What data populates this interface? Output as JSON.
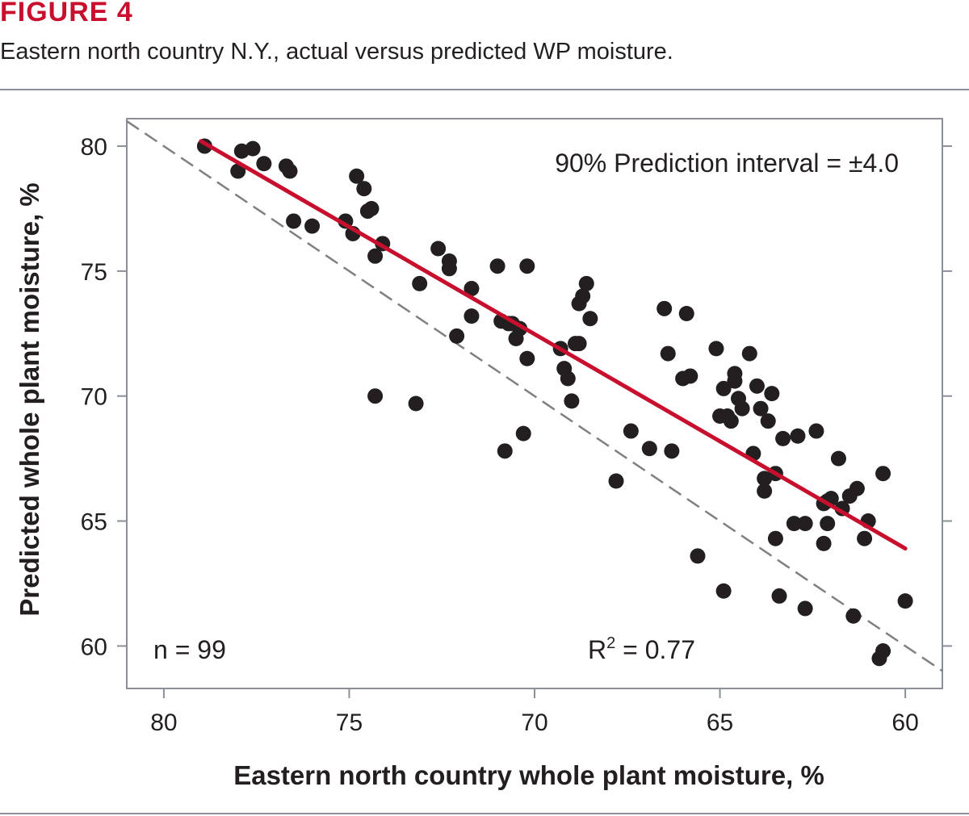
{
  "header": {
    "figure_label": "FIGURE 4",
    "caption": "Eastern north country N.Y., actual versus predicted WP moisture."
  },
  "colors": {
    "accent": "#c8102e",
    "points": "#231f20",
    "reference_line": "#808080",
    "frame": "#8a8f98"
  },
  "chart_data": {
    "type": "scatter",
    "xlabel": "Eastern north country whole plant moisture, %",
    "ylabel": "Predicted whole plant moisture, %",
    "xlim": [
      81,
      59
    ],
    "ylim": [
      58.3,
      81.1
    ],
    "x_reversed": true,
    "x_ticks": [
      80,
      75,
      70,
      65,
      60
    ],
    "y_ticks": [
      80,
      75,
      70,
      65,
      60
    ],
    "annotations": {
      "interval": "90% Prediction interval = ±4.0",
      "n": "n = 99",
      "r2_base": "R",
      "r2_sup": "2",
      "r2_rest": " = 0.77"
    },
    "regression_line": {
      "x": [
        79,
        60
      ],
      "y": [
        80.2,
        63.9
      ]
    },
    "reference_line": {
      "x": [
        81,
        59
      ],
      "y": [
        81,
        59
      ]
    },
    "points": [
      [
        78.9,
        80.0
      ],
      [
        78.0,
        79.0
      ],
      [
        77.9,
        79.8
      ],
      [
        77.6,
        79.9
      ],
      [
        77.3,
        79.3
      ],
      [
        76.7,
        79.2
      ],
      [
        76.6,
        79.0
      ],
      [
        76.5,
        77.0
      ],
      [
        76.0,
        76.8
      ],
      [
        75.1,
        77.0
      ],
      [
        74.9,
        76.5
      ],
      [
        74.8,
        78.8
      ],
      [
        74.6,
        78.3
      ],
      [
        74.5,
        77.4
      ],
      [
        74.4,
        77.5
      ],
      [
        74.3,
        75.6
      ],
      [
        74.1,
        76.1
      ],
      [
        74.3,
        70.0
      ],
      [
        73.1,
        74.5
      ],
      [
        73.2,
        69.7
      ],
      [
        72.6,
        75.9
      ],
      [
        72.3,
        75.4
      ],
      [
        72.3,
        75.1
      ],
      [
        72.1,
        72.4
      ],
      [
        71.7,
        74.3
      ],
      [
        71.7,
        73.2
      ],
      [
        71.0,
        75.2
      ],
      [
        70.9,
        73.0
      ],
      [
        70.8,
        67.8
      ],
      [
        70.7,
        72.9
      ],
      [
        70.6,
        72.9
      ],
      [
        70.5,
        72.3
      ],
      [
        70.4,
        72.7
      ],
      [
        70.3,
        68.5
      ],
      [
        70.2,
        71.5
      ],
      [
        70.2,
        75.2
      ],
      [
        69.3,
        71.9
      ],
      [
        69.2,
        71.1
      ],
      [
        69.1,
        70.7
      ],
      [
        69.0,
        69.8
      ],
      [
        68.9,
        72.1
      ],
      [
        68.8,
        72.1
      ],
      [
        68.8,
        73.7
      ],
      [
        68.7,
        74.0
      ],
      [
        68.6,
        74.5
      ],
      [
        68.5,
        73.1
      ],
      [
        67.8,
        66.6
      ],
      [
        67.4,
        68.6
      ],
      [
        66.9,
        67.9
      ],
      [
        66.5,
        73.5
      ],
      [
        66.4,
        71.7
      ],
      [
        66.3,
        67.8
      ],
      [
        66.0,
        70.7
      ],
      [
        65.9,
        73.3
      ],
      [
        65.8,
        70.8
      ],
      [
        65.6,
        63.6
      ],
      [
        65.1,
        71.9
      ],
      [
        65.0,
        69.2
      ],
      [
        64.9,
        62.2
      ],
      [
        64.9,
        70.3
      ],
      [
        64.8,
        69.2
      ],
      [
        64.7,
        69.0
      ],
      [
        64.6,
        70.6
      ],
      [
        64.6,
        70.9
      ],
      [
        64.5,
        69.9
      ],
      [
        64.4,
        69.5
      ],
      [
        64.2,
        71.7
      ],
      [
        64.1,
        67.7
      ],
      [
        64.0,
        70.4
      ],
      [
        63.9,
        69.5
      ],
      [
        63.8,
        66.7
      ],
      [
        63.8,
        66.2
      ],
      [
        63.7,
        69.0
      ],
      [
        63.6,
        70.1
      ],
      [
        63.5,
        66.9
      ],
      [
        63.5,
        64.3
      ],
      [
        63.4,
        62.0
      ],
      [
        63.3,
        68.3
      ],
      [
        63.0,
        64.9
      ],
      [
        62.9,
        68.4
      ],
      [
        62.7,
        64.9
      ],
      [
        62.7,
        61.5
      ],
      [
        62.4,
        68.6
      ],
      [
        62.2,
        64.1
      ],
      [
        62.1,
        65.8
      ],
      [
        62.1,
        64.9
      ],
      [
        62.0,
        65.9
      ],
      [
        61.8,
        67.5
      ],
      [
        61.7,
        65.5
      ],
      [
        61.5,
        66.0
      ],
      [
        61.4,
        61.2
      ],
      [
        61.3,
        66.3
      ],
      [
        61.1,
        64.3
      ],
      [
        61.0,
        65.0
      ],
      [
        60.7,
        59.5
      ],
      [
        60.6,
        59.8
      ],
      [
        60.6,
        66.9
      ],
      [
        60.0,
        61.8
      ],
      [
        62.2,
        65.7
      ]
    ]
  }
}
